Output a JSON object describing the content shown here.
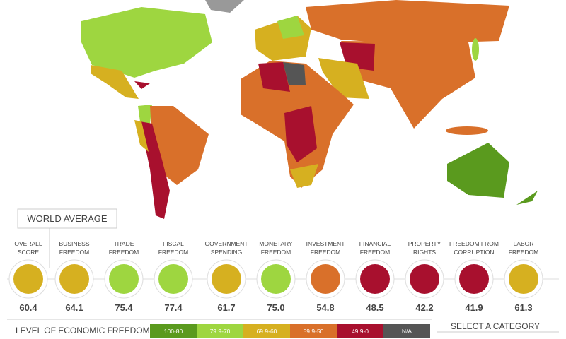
{
  "world_average": "WORLD AVERAGE",
  "indicators": [
    {
      "label": "OVERALL SCORE",
      "value": "60.4",
      "color": "#d6b020"
    },
    {
      "label": "BUSINESS FREEDOM",
      "value": "64.1",
      "color": "#d6b020"
    },
    {
      "label": "TRADE FREEDOM",
      "value": "75.4",
      "color": "#9ed640"
    },
    {
      "label": "FISCAL FREEDOM",
      "value": "77.4",
      "color": "#9ed640"
    },
    {
      "label": "GOVERNMENT SPENDING",
      "value": "61.7",
      "color": "#d6b020"
    },
    {
      "label": "MONETARY FREEDOM",
      "value": "75.0",
      "color": "#9ed640"
    },
    {
      "label": "INVESTMENT FREEDOM",
      "value": "54.8",
      "color": "#d9702a"
    },
    {
      "label": "FINANCIAL FREEDOM",
      "value": "48.5",
      "color": "#a8102e"
    },
    {
      "label": "PROPERTY RIGHTS",
      "value": "42.2",
      "color": "#a8102e"
    },
    {
      "label": "FREEDOM FROM CORRUPTION",
      "value": "41.9",
      "color": "#a8102e"
    },
    {
      "label": "LABOR FREEDOM",
      "value": "61.3",
      "color": "#d6b020"
    }
  ],
  "legend": {
    "title": "LEVEL OF ECONOMIC FREEDOM",
    "items": [
      {
        "label": "100-80",
        "color": "#5a9a1e"
      },
      {
        "label": "79.9-70",
        "color": "#9ed640"
      },
      {
        "label": "69.9-60",
        "color": "#d6b020"
      },
      {
        "label": "59.9-50",
        "color": "#d9702a"
      },
      {
        "label": "49.9-0",
        "color": "#a8102e"
      },
      {
        "label": "N/A",
        "color": "#555555"
      }
    ]
  },
  "select_category": "SELECT A CATEGORY"
}
